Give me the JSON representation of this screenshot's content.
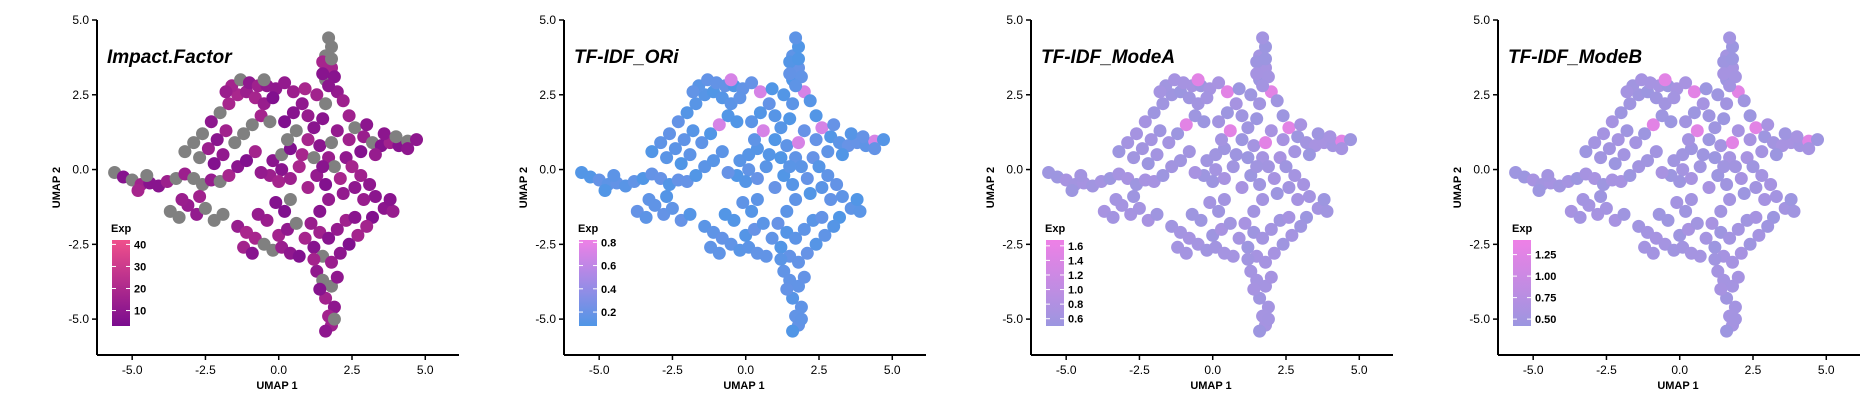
{
  "chart_data": [
    {
      "type": "scatter",
      "title": "Impact.Factor",
      "xlabel": "UMAP 1",
      "ylabel": "UMAP 2",
      "xlim": [
        -6.2,
        5.4
      ],
      "ylim": [
        -6.2,
        5.0
      ],
      "xticks": [
        "-5.0",
        "-2.5",
        "0.0",
        "2.5",
        "5.0"
      ],
      "yticks": [
        "-5.0",
        "-2.5",
        "0.0",
        "2.5",
        "5.0"
      ],
      "legend": {
        "title": "Exp",
        "ticks": [
          "40",
          "30",
          "20",
          "10"
        ],
        "range": [
          3,
          42
        ],
        "position": "left"
      },
      "gradient": [
        "#7a0c8e",
        "#f0508c"
      ],
      "na_color": "#808080",
      "na_fraction": 0.33
    },
    {
      "type": "scatter",
      "title": "TF-IDF_ORi",
      "xlabel": "UMAP 1",
      "ylabel": "UMAP 2",
      "xlim": [
        -6.2,
        5.4
      ],
      "ylim": [
        -6.2,
        5.0
      ],
      "xticks": [
        "-5.0",
        "-2.5",
        "0.0",
        "2.5",
        "5.0"
      ],
      "yticks": [
        "-5.0",
        "-2.5",
        "0.0",
        "2.5",
        "5.0"
      ],
      "legend": {
        "title": "Exp",
        "ticks": [
          "0.8",
          "0.6",
          "0.4",
          "0.2"
        ],
        "range": [
          0.08,
          0.82
        ],
        "position": "left"
      },
      "gradient": [
        "#5096e6",
        "#ee80e6"
      ]
    },
    {
      "type": "scatter",
      "title": "TF-IDF_ModeA",
      "xlabel": "UMAP 1",
      "ylabel": "UMAP 2",
      "xlim": [
        -6.2,
        5.4
      ],
      "ylim": [
        -6.2,
        5.0
      ],
      "xticks": [
        "-5.0",
        "-2.5",
        "0.0",
        "2.5",
        "5.0"
      ],
      "yticks": [
        "-5.0",
        "-2.5",
        "0.0",
        "2.5",
        "5.0"
      ],
      "legend": {
        "title": "Exp",
        "ticks": [
          "1.6",
          "1.4",
          "1.2",
          "1.0",
          "0.8",
          "0.6"
        ],
        "range": [
          0.5,
          1.68
        ],
        "position": "left"
      },
      "gradient": [
        "#9c96e0",
        "#ee80e6"
      ]
    },
    {
      "type": "scatter",
      "title": "TF-IDF_ModeB",
      "xlabel": "UMAP 1",
      "ylabel": "UMAP 2",
      "xlim": [
        -6.2,
        5.4
      ],
      "ylim": [
        -6.2,
        5.0
      ],
      "xticks": [
        "-5.0",
        "-2.5",
        "0.0",
        "2.5",
        "5.0"
      ],
      "yticks": [
        "-5.0",
        "-2.5",
        "0.0",
        "2.5",
        "5.0"
      ],
      "legend": {
        "title": "Exp",
        "ticks": [
          "1.25",
          "1.00",
          "0.75",
          "0.50"
        ],
        "range": [
          0.42,
          1.42
        ],
        "position": "left"
      },
      "gradient": [
        "#9c96e0",
        "#ee80e6"
      ]
    }
  ],
  "umap_points": [
    [
      -5.6,
      -0.1
    ],
    [
      -5.3,
      -0.25
    ],
    [
      -5.0,
      -0.35
    ],
    [
      -4.7,
      -0.5
    ],
    [
      -4.4,
      -0.45
    ],
    [
      -4.1,
      -0.55
    ],
    [
      -3.8,
      -0.4
    ],
    [
      -3.5,
      -0.3
    ],
    [
      -3.2,
      -0.15
    ],
    [
      -2.9,
      -0.3
    ],
    [
      -2.6,
      -0.5
    ],
    [
      -2.3,
      -0.35
    ],
    [
      -4.8,
      -0.7
    ],
    [
      -4.5,
      -0.2
    ],
    [
      -3.7,
      -1.4
    ],
    [
      -3.4,
      -1.6
    ],
    [
      -3.1,
      -1.2
    ],
    [
      -2.8,
      -1.5
    ],
    [
      -2.5,
      -1.3
    ],
    [
      -2.2,
      -1.7
    ],
    [
      -1.9,
      -1.5
    ],
    [
      -3.3,
      -1.0
    ],
    [
      -2.7,
      -0.9
    ],
    [
      -3.2,
      0.6
    ],
    [
      -2.9,
      0.9
    ],
    [
      -2.6,
      1.2
    ],
    [
      -2.3,
      1.6
    ],
    [
      -2.0,
      1.9
    ],
    [
      -1.7,
      2.2
    ],
    [
      -1.4,
      2.5
    ],
    [
      -1.1,
      2.6
    ],
    [
      -0.8,
      2.4
    ],
    [
      -0.5,
      2.2
    ],
    [
      -2.7,
      0.4
    ],
    [
      -2.4,
      0.7
    ],
    [
      -2.1,
      1.0
    ],
    [
      -1.8,
      1.3
    ],
    [
      -2.0,
      -0.4
    ],
    [
      -1.7,
      -0.2
    ],
    [
      -1.4,
      0.1
    ],
    [
      -1.1,
      0.3
    ],
    [
      -0.8,
      0.6
    ],
    [
      -1.5,
      0.9
    ],
    [
      -1.2,
      1.2
    ],
    [
      -0.9,
      1.5
    ],
    [
      -0.6,
      1.8
    ],
    [
      -0.3,
      1.6
    ],
    [
      -2.2,
      0.2
    ],
    [
      -1.9,
      0.5
    ],
    [
      -1.6,
      2.8
    ],
    [
      -1.3,
      3.0
    ],
    [
      -1.0,
      2.9
    ],
    [
      -0.7,
      2.8
    ],
    [
      -0.4,
      2.8
    ],
    [
      -0.1,
      2.7
    ],
    [
      0.2,
      2.9
    ],
    [
      -0.5,
      3.0
    ],
    [
      -1.8,
      2.6
    ],
    [
      0.5,
      2.6
    ],
    [
      -0.2,
      2.4
    ],
    [
      -0.2,
      0.3
    ],
    [
      0.1,
      0.5
    ],
    [
      0.4,
      0.7
    ],
    [
      0.1,
      0.0
    ],
    [
      -0.3,
      -0.2
    ],
    [
      0.0,
      -0.4
    ],
    [
      0.4,
      -0.3
    ],
    [
      0.7,
      0.1
    ],
    [
      0.8,
      0.5
    ],
    [
      -0.6,
      -0.1
    ],
    [
      0.3,
      1.0
    ],
    [
      0.6,
      1.3
    ],
    [
      0.2,
      1.6
    ],
    [
      0.5,
      1.9
    ],
    [
      0.8,
      2.2
    ],
    [
      1.0,
      1.8
    ],
    [
      1.2,
      1.4
    ],
    [
      1.0,
      1.0
    ],
    [
      1.3,
      2.5
    ],
    [
      0.9,
      2.7
    ],
    [
      1.6,
      2.2
    ],
    [
      1.5,
      1.7
    ],
    [
      1.4,
      0.8
    ],
    [
      1.7,
      0.4
    ],
    [
      1.9,
      0.1
    ],
    [
      2.1,
      -0.3
    ],
    [
      1.6,
      -0.5
    ],
    [
      1.3,
      -0.2
    ],
    [
      1.0,
      -0.6
    ],
    [
      1.8,
      0.9
    ],
    [
      2.3,
      0.4
    ],
    [
      2.0,
      1.3
    ],
    [
      2.4,
      1.0
    ],
    [
      1.5,
      0.1
    ],
    [
      1.2,
      0.4
    ],
    [
      2.2,
      -0.8
    ],
    [
      1.7,
      -1.0
    ],
    [
      1.4,
      -1.4
    ],
    [
      1.6,
      3.0
    ],
    [
      1.8,
      3.4
    ],
    [
      1.6,
      3.8
    ],
    [
      1.8,
      4.1
    ],
    [
      1.7,
      4.4
    ],
    [
      1.5,
      3.6
    ],
    [
      1.9,
      3.1
    ],
    [
      2.0,
      2.6
    ],
    [
      1.7,
      2.8
    ],
    [
      2.2,
      2.3
    ],
    [
      1.5,
      3.2
    ],
    [
      1.8,
      3.7
    ],
    [
      2.4,
      1.8
    ],
    [
      2.6,
      1.4
    ],
    [
      2.9,
      1.1
    ],
    [
      3.2,
      0.9
    ],
    [
      3.5,
      0.8
    ],
    [
      3.8,
      0.9
    ],
    [
      4.1,
      0.8
    ],
    [
      4.4,
      0.95
    ],
    [
      4.7,
      1.0
    ],
    [
      3.0,
      1.5
    ],
    [
      2.8,
      0.6
    ],
    [
      3.3,
      0.5
    ],
    [
      3.6,
      1.2
    ],
    [
      4.0,
      1.1
    ],
    [
      4.4,
      0.7
    ],
    [
      2.5,
      0.1
    ],
    [
      2.8,
      -0.2
    ],
    [
      3.1,
      -0.5
    ],
    [
      3.3,
      -0.9
    ],
    [
      3.6,
      -1.3
    ],
    [
      3.9,
      -1.4
    ],
    [
      2.6,
      -0.6
    ],
    [
      2.9,
      -1.0
    ],
    [
      3.2,
      -1.6
    ],
    [
      3.8,
      -1.0
    ],
    [
      1.1,
      -1.8
    ],
    [
      1.4,
      -2.1
    ],
    [
      1.7,
      -2.3
    ],
    [
      2.0,
      -2.0
    ],
    [
      2.3,
      -1.7
    ],
    [
      2.6,
      -1.6
    ],
    [
      1.2,
      -2.6
    ],
    [
      1.5,
      -2.9
    ],
    [
      1.8,
      -3.1
    ],
    [
      2.1,
      -2.8
    ],
    [
      2.4,
      -2.5
    ],
    [
      2.7,
      -2.2
    ],
    [
      0.9,
      -2.3
    ],
    [
      3.0,
      -1.9
    ],
    [
      -1.4,
      -1.9
    ],
    [
      -1.1,
      -2.1
    ],
    [
      -0.8,
      -2.3
    ],
    [
      -0.5,
      -2.5
    ],
    [
      -0.2,
      -2.7
    ],
    [
      0.1,
      -2.6
    ],
    [
      0.4,
      -2.8
    ],
    [
      0.7,
      -2.9
    ],
    [
      -1.2,
      -2.6
    ],
    [
      -0.9,
      -2.8
    ],
    [
      0.0,
      -2.2
    ],
    [
      0.3,
      -2.0
    ],
    [
      0.6,
      -1.8
    ],
    [
      -0.4,
      -1.7
    ],
    [
      -0.7,
      -1.5
    ],
    [
      0.2,
      -1.4
    ],
    [
      -0.1,
      -1.1
    ],
    [
      0.4,
      -1.0
    ],
    [
      1.3,
      -3.4
    ],
    [
      1.5,
      -3.7
    ],
    [
      1.8,
      -3.9
    ],
    [
      1.6,
      -4.3
    ],
    [
      1.9,
      -4.6
    ],
    [
      1.7,
      -4.9
    ],
    [
      1.8,
      -5.2
    ],
    [
      1.6,
      -5.4
    ],
    [
      1.4,
      -4.0
    ],
    [
      2.0,
      -3.6
    ],
    [
      1.2,
      -3.0
    ],
    [
      1.9,
      -5.0
    ]
  ]
}
